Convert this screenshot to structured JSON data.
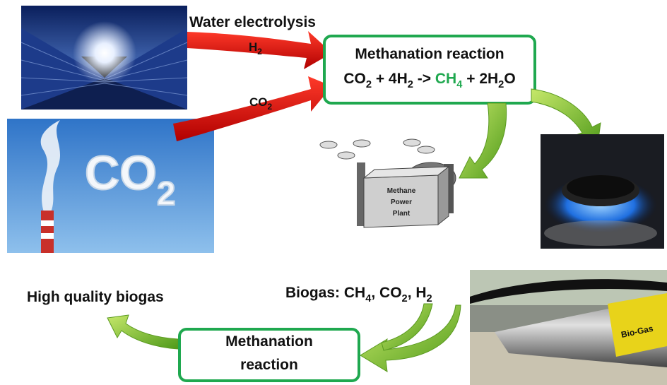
{
  "labels": {
    "water_electrolysis": "Water electrolysis",
    "high_quality_biogas": "High quality biogas"
  },
  "arrows": {
    "h2": [
      {
        "text": "H"
      },
      {
        "text": "2",
        "sub": true
      }
    ],
    "co2": [
      {
        "text": "CO"
      },
      {
        "text": "2",
        "sub": true
      }
    ]
  },
  "top_box": {
    "title": "Methanation reaction",
    "equation": [
      {
        "text": "CO"
      },
      {
        "text": "2",
        "sub": true
      },
      {
        "text": " + 4H"
      },
      {
        "text": "2",
        "sub": true
      },
      {
        "text": " -> "
      },
      {
        "text": "CH",
        "color": "#1fa84f"
      },
      {
        "text": "4",
        "sub": true,
        "color": "#1fa84f"
      },
      {
        "text": " + 2H"
      },
      {
        "text": "2",
        "sub": true
      },
      {
        "text": "O"
      }
    ]
  },
  "biogas": [
    {
      "text": "Biogas: CH"
    },
    {
      "text": "4",
      "sub": true
    },
    {
      "text": ", CO"
    },
    {
      "text": "2",
      "sub": true
    },
    {
      "text": ", H"
    },
    {
      "text": "2",
      "sub": true
    }
  ],
  "bottom_box": {
    "lines": [
      "Methanation",
      "reaction"
    ]
  },
  "plant_label": [
    "Methane",
    "Power",
    "Plant"
  ],
  "images": {
    "co2_cloud": [
      {
        "text": "CO"
      },
      {
        "text": "2",
        "sub": true
      }
    ],
    "pipe_label": "Bio-Gas"
  }
}
